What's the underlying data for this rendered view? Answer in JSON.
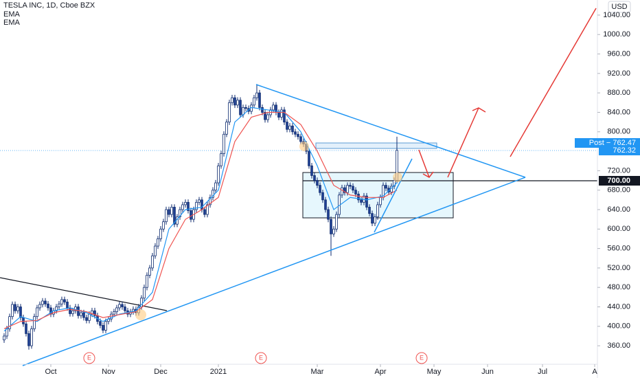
{
  "chart_data": {
    "type": "candlestick",
    "title": "TESLA INC, 1D, Cboe BZX",
    "currency": "USD",
    "up_color": "#ffffff",
    "down_color": "#1e3f93",
    "border_color": "#0d2a6e",
    "x": [
      0,
      1,
      2,
      3,
      4,
      5,
      6,
      7,
      8,
      9,
      10,
      11,
      12,
      13,
      14,
      15,
      16,
      17,
      18,
      19,
      20,
      21,
      22,
      23,
      24,
      25,
      26,
      27,
      28,
      29,
      30,
      31,
      32,
      33,
      34,
      35,
      36,
      37,
      38,
      39,
      40,
      41,
      42,
      43,
      44,
      45,
      46,
      47,
      48,
      49,
      50,
      51,
      52,
      53,
      54,
      55,
      56,
      57,
      58,
      59,
      60,
      61,
      62,
      63,
      64,
      65,
      66,
      67,
      68,
      69,
      70,
      71,
      72,
      73,
      74,
      75,
      76,
      77,
      78,
      79,
      80,
      81,
      82,
      83,
      84,
      85,
      86,
      87,
      88,
      89,
      90,
      91,
      92,
      93,
      94,
      95,
      96,
      97,
      98,
      99,
      100,
      101,
      102,
      103,
      104,
      105,
      106,
      107,
      108,
      109,
      110,
      111,
      112,
      113,
      114,
      115,
      116,
      117,
      118,
      119,
      120,
      121,
      122,
      123,
      124,
      125,
      126,
      127,
      128,
      129,
      130,
      131,
      132,
      133,
      134,
      135,
      136,
      137,
      138,
      139,
      140,
      141,
      142,
      143
    ],
    "open": [
      372,
      380,
      395,
      420,
      445,
      432,
      440,
      418,
      405,
      385,
      360,
      395,
      420,
      438,
      445,
      452,
      446,
      438,
      425,
      432,
      440,
      446,
      455,
      450,
      438,
      426,
      432,
      440,
      422,
      428,
      418,
      412,
      425,
      432,
      422,
      410,
      402,
      392,
      410,
      415,
      425,
      430,
      438,
      445,
      440,
      432,
      425,
      430,
      435,
      428,
      440,
      458,
      480,
      505,
      520,
      545,
      565,
      580,
      600,
      615,
      640,
      630,
      645,
      610,
      625,
      640,
      650,
      655,
      638,
      620,
      640,
      655,
      660,
      640,
      630,
      650,
      665,
      680,
      695,
      730,
      755,
      795,
      820,
      860,
      870,
      855,
      865,
      835,
      850,
      848,
      842,
      855,
      870,
      880,
      850,
      840,
      825,
      835,
      845,
      855,
      840,
      830,
      845,
      820,
      805,
      812,
      800,
      795,
      790,
      780,
      775,
      760,
      730,
      710,
      700,
      690,
      675,
      660,
      640,
      620,
      590,
      600,
      630,
      670,
      685,
      675,
      690,
      688,
      680,
      672,
      660,
      655,
      668,
      645,
      632,
      612,
      625,
      650,
      665,
      690,
      684,
      676,
      688,
      700
    ],
    "high": [
      386,
      401,
      426,
      451,
      451,
      446,
      446,
      424,
      411,
      391,
      401,
      426,
      444,
      451,
      458,
      458,
      452,
      444,
      438,
      446,
      452,
      461,
      461,
      456,
      444,
      438,
      446,
      446,
      434,
      434,
      424,
      431,
      438,
      438,
      428,
      416,
      408,
      416,
      421,
      431,
      436,
      444,
      451,
      451,
      446,
      438,
      436,
      441,
      441,
      446,
      464,
      486,
      511,
      526,
      551,
      571,
      586,
      606,
      621,
      646,
      646,
      651,
      651,
      631,
      646,
      656,
      661,
      661,
      644,
      646,
      661,
      666,
      666,
      646,
      656,
      671,
      686,
      701,
      736,
      761,
      801,
      826,
      866,
      876,
      876,
      871,
      871,
      856,
      856,
      854,
      861,
      876,
      898,
      886,
      856,
      846,
      841,
      851,
      861,
      861,
      846,
      851,
      851,
      826,
      818,
      818,
      806,
      801,
      796,
      786,
      781,
      766,
      736,
      716,
      706,
      696,
      681,
      666,
      646,
      626,
      606,
      636,
      676,
      691,
      691,
      696,
      696,
      694,
      686,
      678,
      666,
      674,
      674,
      651,
      638,
      631,
      656,
      671,
      696,
      696,
      690,
      694,
      706,
      790
    ],
    "low": [
      366,
      374,
      389,
      414,
      426,
      426,
      412,
      399,
      379,
      352,
      354,
      389,
      414,
      432,
      439,
      440,
      432,
      419,
      419,
      426,
      434,
      440,
      444,
      432,
      420,
      420,
      426,
      416,
      416,
      412,
      406,
      406,
      419,
      416,
      404,
      396,
      386,
      386,
      404,
      409,
      419,
      424,
      432,
      434,
      426,
      419,
      419,
      424,
      422,
      422,
      434,
      452,
      474,
      499,
      514,
      539,
      559,
      574,
      594,
      609,
      624,
      624,
      604,
      604,
      619,
      634,
      644,
      632,
      614,
      614,
      634,
      649,
      634,
      624,
      624,
      644,
      659,
      674,
      689,
      724,
      749,
      789,
      814,
      854,
      849,
      849,
      829,
      829,
      842,
      836,
      836,
      849,
      864,
      844,
      834,
      819,
      819,
      829,
      839,
      834,
      824,
      824,
      814,
      799,
      799,
      794,
      789,
      784,
      774,
      769,
      754,
      724,
      704,
      694,
      684,
      669,
      654,
      634,
      614,
      545,
      584,
      594,
      624,
      664,
      669,
      669,
      682,
      674,
      666,
      654,
      649,
      649,
      639,
      626,
      606,
      606,
      619,
      644,
      659,
      678,
      670,
      670,
      682,
      694
    ],
    "close": [
      380,
      395,
      420,
      445,
      432,
      440,
      418,
      405,
      385,
      360,
      395,
      420,
      438,
      445,
      452,
      446,
      438,
      425,
      432,
      440,
      446,
      455,
      450,
      438,
      426,
      432,
      440,
      422,
      428,
      418,
      412,
      425,
      432,
      422,
      410,
      402,
      392,
      410,
      415,
      425,
      430,
      438,
      445,
      440,
      432,
      425,
      430,
      435,
      428,
      440,
      458,
      480,
      505,
      520,
      545,
      565,
      580,
      600,
      615,
      640,
      630,
      645,
      610,
      625,
      640,
      650,
      655,
      638,
      620,
      640,
      655,
      660,
      640,
      630,
      650,
      665,
      680,
      695,
      730,
      755,
      795,
      820,
      860,
      870,
      855,
      865,
      835,
      850,
      848,
      842,
      855,
      870,
      880,
      850,
      840,
      825,
      835,
      845,
      855,
      840,
      830,
      845,
      820,
      805,
      812,
      800,
      795,
      790,
      780,
      775,
      760,
      730,
      710,
      700,
      690,
      675,
      660,
      640,
      620,
      590,
      600,
      630,
      670,
      685,
      675,
      690,
      688,
      680,
      672,
      660,
      655,
      668,
      645,
      632,
      612,
      625,
      650,
      665,
      690,
      684,
      676,
      688,
      700,
      762
    ],
    "lines": [
      {
        "name": "EMA",
        "color": "#2196f3",
        "x": [
          0,
          6,
          12,
          18,
          24,
          30,
          36,
          42,
          48,
          54,
          60,
          66,
          72,
          78,
          84,
          90,
          96,
          102,
          108,
          114,
          120,
          126,
          132,
          138,
          143
        ],
        "values": [
          390,
          420,
          410,
          432,
          438,
          428,
          410,
          425,
          432,
          470,
          600,
          640,
          645,
          680,
          820,
          850,
          845,
          840,
          800,
          730,
          640,
          665,
          660,
          668,
          695
        ]
      },
      {
        "name": "EMA",
        "color": "#ef5350",
        "x": [
          0,
          6,
          12,
          18,
          24,
          30,
          36,
          42,
          48,
          54,
          60,
          66,
          72,
          78,
          84,
          90,
          96,
          102,
          108,
          114,
          120,
          126,
          132,
          138,
          143
        ],
        "values": [
          395,
          410,
          412,
          428,
          435,
          430,
          418,
          424,
          430,
          455,
          560,
          620,
          640,
          665,
          780,
          830,
          840,
          840,
          815,
          760,
          690,
          670,
          665,
          665,
          680
        ]
      }
    ],
    "xlim": [
      -1.5,
      216
    ],
    "xticks": [
      {
        "value": 17,
        "label": "Oct"
      },
      {
        "value": 38,
        "label": "Nov"
      },
      {
        "value": 57,
        "label": "Dec"
      },
      {
        "value": 78,
        "label": "2021"
      },
      {
        "value": 114,
        "label": "Mar"
      },
      {
        "value": 137,
        "label": "Apr"
      },
      {
        "value": 156.5,
        "label": "May"
      },
      {
        "value": 176,
        "label": "Jun"
      },
      {
        "value": 196,
        "label": "Jul"
      },
      {
        "value": 215,
        "label": "A"
      }
    ],
    "ylim": [
      322,
      1071
    ],
    "yticks": [
      {
        "value": 360,
        "label": "360.00"
      },
      {
        "value": 400,
        "label": "400.00"
      },
      {
        "value": 440,
        "label": "440.00"
      },
      {
        "value": 480,
        "label": "480.00"
      },
      {
        "value": 520,
        "label": "520.00"
      },
      {
        "value": 560,
        "label": "560.00"
      },
      {
        "value": 600,
        "label": "600.00"
      },
      {
        "value": 640,
        "label": "640.00"
      },
      {
        "value": 680,
        "label": "680.00"
      },
      {
        "value": 720,
        "label": "720.00"
      },
      {
        "value": 800,
        "label": "800.00"
      },
      {
        "value": 840,
        "label": "840.00"
      },
      {
        "value": 880,
        "label": "880.00"
      },
      {
        "value": 920,
        "label": "920.00"
      },
      {
        "value": 960,
        "label": "960.00"
      },
      {
        "value": 1000,
        "label": "1000.00"
      },
      {
        "value": 1040,
        "label": "1040.00"
      }
    ],
    "grid": false,
    "post_label": "Post − 762.47",
    "last_label": "762.32",
    "level_label": "700.00",
    "earnings": [
      "E",
      "E",
      "E"
    ]
  }
}
